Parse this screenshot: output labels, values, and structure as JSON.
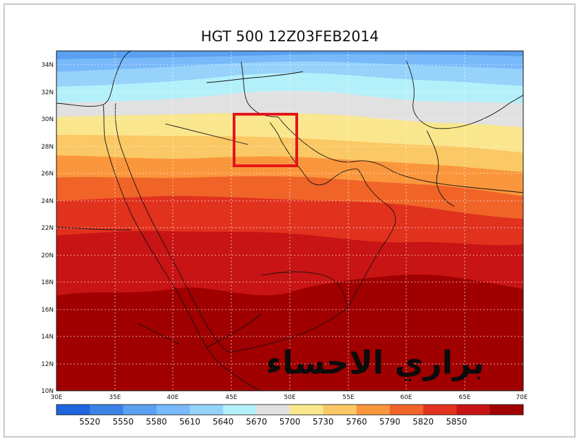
{
  "title": "HGT 500 12Z03FEB2014",
  "watermark": "براري الاحساء",
  "lat_ticks": [
    "34N",
    "32N",
    "30N",
    "28N",
    "26N",
    "24N",
    "22N",
    "20N",
    "18N",
    "16N",
    "14N",
    "12N",
    "10N"
  ],
  "lon_ticks": [
    "30E",
    "35E",
    "40E",
    "45E",
    "50E",
    "55E",
    "60E",
    "65E",
    "70E"
  ],
  "colorbar": {
    "labels": [
      "5520",
      "5550",
      "5580",
      "5610",
      "5640",
      "5670",
      "5700",
      "5730",
      "5760",
      "5790",
      "5820",
      "5850"
    ],
    "colors": [
      "#1e64dc",
      "#3c82e6",
      "#5aa0f0",
      "#78b9fa",
      "#96d2fa",
      "#b4f0fa",
      "#e1e1e1",
      "#fae68c",
      "#fac864",
      "#fa963c",
      "#f06428",
      "#e1321e",
      "#c81414",
      "#a00000"
    ]
  },
  "highlight_box_color": "#e4141c"
}
